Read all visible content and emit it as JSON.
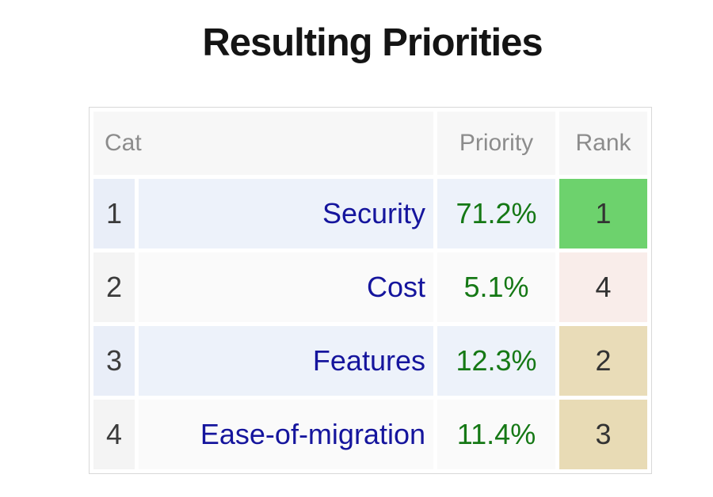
{
  "title": "Resulting Priorities",
  "table": {
    "headers": {
      "cat": "Cat",
      "priority": "Priority",
      "rank": "Rank"
    },
    "rows": [
      {
        "index": "1",
        "name": "Security",
        "priority": "71.2%",
        "rank": "1",
        "rank_bg": "#6dd26d"
      },
      {
        "index": "2",
        "name": "Cost",
        "priority": "5.1%",
        "rank": "4",
        "rank_bg": "#f9edea"
      },
      {
        "index": "3",
        "name": "Features",
        "priority": "12.3%",
        "rank": "2",
        "rank_bg": "#e9dcb8"
      },
      {
        "index": "4",
        "name": "Ease-of-migration",
        "priority": "11.4%",
        "rank": "3",
        "rank_bg": "#e8dbb5"
      }
    ]
  },
  "colors": {
    "title_text": "#141414",
    "table_border": "#d8d8d8",
    "header_bg": "#f7f7f7",
    "header_text": "#8c8c8c",
    "row_odd_bg": "#edf2fa",
    "row_even_bg": "#fafafa",
    "index_odd_bg": "#e9eef8",
    "index_even_bg": "#f4f4f4",
    "name_text": "#15159d",
    "priority_text": "#157815",
    "rank_text": "#333333",
    "rank_1_bg": "#6dd26d",
    "rank_2_bg": "#e9dcb8",
    "rank_3_bg": "#e8dbb5",
    "rank_4_bg": "#f9edea"
  },
  "chart_data": {
    "type": "table",
    "title": "Resulting Priorities",
    "columns": [
      "Cat",
      "Priority",
      "Rank"
    ],
    "rows": [
      [
        "1",
        "Security",
        "71.2%",
        "1"
      ],
      [
        "2",
        "Cost",
        "5.1%",
        "4"
      ],
      [
        "3",
        "Features",
        "12.3%",
        "2"
      ],
      [
        "4",
        "Ease-of-migration",
        "11.4%",
        "3"
      ]
    ],
    "priorities_pct": {
      "Security": 71.2,
      "Cost": 5.1,
      "Features": 12.3,
      "Ease-of-migration": 11.4
    },
    "ranks": {
      "Security": 1,
      "Cost": 4,
      "Features": 2,
      "Ease-of-migration": 3
    }
  }
}
